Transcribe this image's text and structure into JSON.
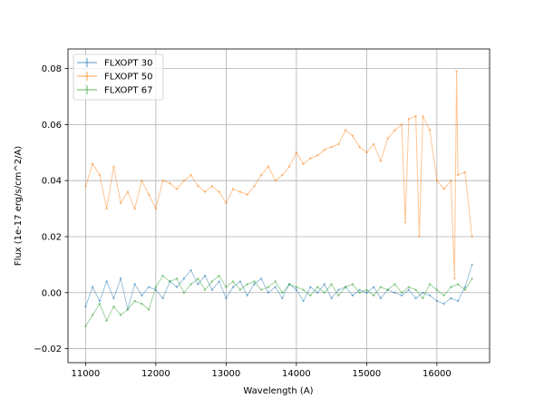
{
  "chart_data": {
    "type": "line",
    "xlabel": "Wavelength (A)",
    "ylabel": "Flux (1e-17 erg/s/cm^2/A)",
    "xlim": [
      10750,
      16750
    ],
    "ylim": [
      -0.025,
      0.087
    ],
    "xticks": [
      11000,
      12000,
      13000,
      14000,
      15000,
      16000
    ],
    "xtick_labels": [
      "11000",
      "12000",
      "13000",
      "14000",
      "15000",
      "16000"
    ],
    "yticks": [
      -0.02,
      0.0,
      0.02,
      0.04,
      0.06,
      0.08
    ],
    "ytick_labels": [
      "−0.02",
      "0.00",
      "0.02",
      "0.04",
      "0.06",
      "0.08"
    ],
    "grid": true,
    "legend_position": "top-left",
    "series": [
      {
        "name": "FLXOPT 30",
        "color": "#1f77b4",
        "x": [
          11000,
          11100,
          11200,
          11300,
          11400,
          11500,
          11600,
          11700,
          11800,
          11900,
          12000,
          12100,
          12200,
          12300,
          12400,
          12500,
          12600,
          12700,
          12800,
          12900,
          13000,
          13100,
          13200,
          13300,
          13400,
          13500,
          13600,
          13700,
          13800,
          13900,
          14000,
          14100,
          14200,
          14300,
          14400,
          14500,
          14600,
          14700,
          14800,
          14900,
          15000,
          15100,
          15200,
          15300,
          15400,
          15500,
          15600,
          15700,
          15800,
          15900,
          16000,
          16100,
          16200,
          16300,
          16400,
          16500
        ],
        "y": [
          -0.005,
          0.002,
          -0.003,
          0.004,
          -0.002,
          0.005,
          -0.006,
          0.003,
          -0.001,
          0.002,
          0.001,
          -0.002,
          0.004,
          0.002,
          0.005,
          0.008,
          0.003,
          0.006,
          0.001,
          0.004,
          -0.002,
          0.002,
          0.004,
          -0.001,
          0.003,
          0.005,
          0.0,
          0.002,
          -0.002,
          0.003,
          0.001,
          -0.003,
          0.002,
          0.0,
          0.003,
          -0.002,
          0.001,
          0.002,
          -0.001,
          0.001,
          0.0,
          0.002,
          -0.002,
          0.001,
          0.0,
          -0.001,
          0.001,
          -0.002,
          0.0,
          -0.001,
          -0.003,
          -0.004,
          -0.002,
          -0.003,
          0.002,
          0.01
        ]
      },
      {
        "name": "FLXOPT 50",
        "color": "#ff7f0e",
        "x": [
          11000,
          11100,
          11200,
          11300,
          11400,
          11500,
          11600,
          11700,
          11800,
          11900,
          12000,
          12100,
          12200,
          12300,
          12400,
          12500,
          12600,
          12700,
          12800,
          12900,
          13000,
          13100,
          13200,
          13300,
          13400,
          13500,
          13600,
          13700,
          13800,
          13900,
          14000,
          14100,
          14200,
          14300,
          14400,
          14500,
          14600,
          14700,
          14800,
          14900,
          15000,
          15100,
          15200,
          15300,
          15400,
          15500,
          15550,
          15600,
          15700,
          15750,
          15800,
          15900,
          16000,
          16100,
          16200,
          16250,
          16280,
          16300,
          16400,
          16500
        ],
        "y": [
          0.038,
          0.046,
          0.042,
          0.03,
          0.045,
          0.032,
          0.036,
          0.03,
          0.04,
          0.035,
          0.03,
          0.04,
          0.039,
          0.037,
          0.04,
          0.042,
          0.038,
          0.036,
          0.038,
          0.036,
          0.032,
          0.037,
          0.036,
          0.035,
          0.038,
          0.042,
          0.045,
          0.04,
          0.042,
          0.045,
          0.05,
          0.046,
          0.048,
          0.049,
          0.051,
          0.052,
          0.053,
          0.058,
          0.056,
          0.052,
          0.05,
          0.053,
          0.047,
          0.055,
          0.058,
          0.06,
          0.025,
          0.062,
          0.063,
          0.02,
          0.063,
          0.058,
          0.04,
          0.037,
          0.04,
          0.005,
          0.079,
          0.042,
          0.043,
          0.02
        ]
      },
      {
        "name": "FLXOPT 67",
        "color": "#2ca02c",
        "x": [
          11000,
          11100,
          11200,
          11300,
          11400,
          11500,
          11600,
          11700,
          11800,
          11900,
          12000,
          12100,
          12200,
          12300,
          12400,
          12500,
          12600,
          12700,
          12800,
          12900,
          13000,
          13100,
          13200,
          13300,
          13400,
          13500,
          13600,
          13700,
          13800,
          13900,
          14000,
          14100,
          14200,
          14300,
          14400,
          14500,
          14600,
          14700,
          14800,
          14900,
          15000,
          15100,
          15200,
          15300,
          15400,
          15500,
          15600,
          15700,
          15800,
          15900,
          16000,
          16100,
          16200,
          16300,
          16400,
          16500
        ],
        "y": [
          -0.012,
          -0.008,
          -0.004,
          -0.01,
          -0.005,
          -0.008,
          -0.006,
          -0.003,
          -0.004,
          -0.006,
          0.002,
          0.006,
          0.004,
          0.005,
          0.0,
          0.003,
          0.005,
          0.001,
          0.004,
          0.006,
          0.002,
          0.004,
          0.001,
          0.003,
          0.004,
          0.001,
          0.002,
          0.004,
          0.0,
          0.003,
          0.002,
          0.001,
          -0.001,
          0.002,
          0.0,
          0.003,
          -0.001,
          0.002,
          0.003,
          0.0,
          0.001,
          -0.001,
          0.002,
          0.001,
          0.003,
          0.0,
          0.002,
          0.001,
          -0.002,
          0.003,
          0.001,
          -0.001,
          0.002,
          0.003,
          0.001,
          0.005
        ]
      }
    ]
  }
}
